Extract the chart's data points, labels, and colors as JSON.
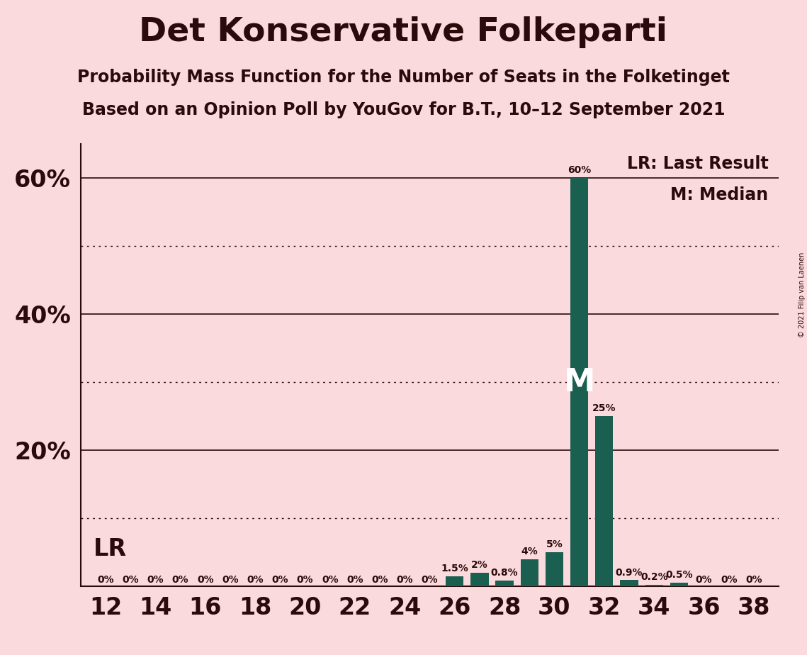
{
  "title": "Det Konservative Folkeparti",
  "subtitle1": "Probability Mass Function for the Number of Seats in the Folketinget",
  "subtitle2": "Based on an Opinion Poll by YouGov for B.T., 10–12 September 2021",
  "copyright": "© 2021 Filip van Laenen",
  "background_color": "#fadadd",
  "bar_color": "#1a5f50",
  "categories": [
    12,
    13,
    14,
    15,
    16,
    17,
    18,
    19,
    20,
    21,
    22,
    23,
    24,
    25,
    26,
    27,
    28,
    29,
    30,
    31,
    32,
    33,
    34,
    35,
    36,
    37,
    38
  ],
  "values": [
    0,
    0,
    0,
    0,
    0,
    0,
    0,
    0,
    0,
    0,
    0,
    0,
    0,
    0,
    1.5,
    2.0,
    0.8,
    4.0,
    5.0,
    60.0,
    25.0,
    0.9,
    0.2,
    0.5,
    0,
    0,
    0
  ],
  "labels": [
    "0%",
    "0%",
    "0%",
    "0%",
    "0%",
    "0%",
    "0%",
    "0%",
    "0%",
    "0%",
    "0%",
    "0%",
    "0%",
    "0%",
    "1.5%",
    "2%",
    "0.8%",
    "4%",
    "5%",
    "60%",
    "25%",
    "0.9%",
    "0.2%",
    "0.5%",
    "0%",
    "0%",
    "0%"
  ],
  "last_result_seat": 12,
  "median_seat": 31,
  "lr_label": "LR",
  "m_label": "M",
  "legend_lr": "LR: Last Result",
  "legend_m": "M: Median",
  "ylim": [
    0,
    65
  ],
  "yticks_labeled": [
    20,
    40,
    60
  ],
  "ytick_labels": [
    "20%",
    "40%",
    "60%"
  ],
  "solid_lines": [
    20,
    40,
    60
  ],
  "dotted_lines": [
    10,
    30,
    50
  ],
  "xtick_step": 2,
  "text_color": "#2a0a0a",
  "m_label_color": "#ffffff",
  "bar_label_fontsize": 10,
  "ytick_fontsize": 24,
  "xtick_fontsize": 24,
  "legend_fontsize": 17,
  "lr_fontsize": 24,
  "title_fontsize": 34,
  "subtitle_fontsize": 17,
  "copyright_fontsize": 7
}
